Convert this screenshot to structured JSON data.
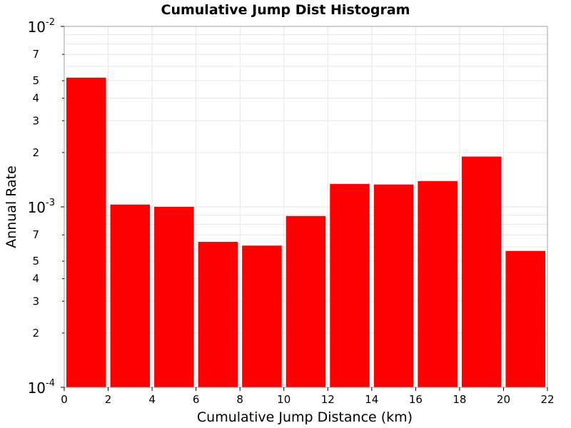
{
  "chart_data": {
    "type": "bar",
    "title": "Cumulative Jump Dist Histogram",
    "xlabel": "Cumulative Jump Distance (km)",
    "ylabel": "Annual Rate",
    "yscale": "log",
    "xlim": [
      0,
      22
    ],
    "ylim": [
      0.0001,
      0.01
    ],
    "x_ticks": [
      "0",
      "2",
      "4",
      "6",
      "8",
      "10",
      "12",
      "14",
      "16",
      "18",
      "20",
      "22"
    ],
    "y_decade_ticks": [
      {
        "base": "10",
        "exponent": "-4"
      },
      {
        "base": "10",
        "exponent": "-3"
      },
      {
        "base": "10",
        "exponent": "-2"
      }
    ],
    "y_minor_labels": [
      "2",
      "3",
      "4",
      "5",
      "7"
    ],
    "grid": true,
    "bar_color": "#ff0000",
    "bins": [
      {
        "x0": 0,
        "x1": 2,
        "value": 0.0052
      },
      {
        "x0": 2,
        "x1": 4,
        "value": 0.00103
      },
      {
        "x0": 4,
        "x1": 6,
        "value": 0.001
      },
      {
        "x0": 6,
        "x1": 8,
        "value": 0.00064
      },
      {
        "x0": 8,
        "x1": 10,
        "value": 0.00061
      },
      {
        "x0": 10,
        "x1": 12,
        "value": 0.00089
      },
      {
        "x0": 12,
        "x1": 14,
        "value": 0.00134
      },
      {
        "x0": 14,
        "x1": 16,
        "value": 0.00133
      },
      {
        "x0": 16,
        "x1": 18,
        "value": 0.00139
      },
      {
        "x0": 18,
        "x1": 20,
        "value": 0.0019
      },
      {
        "x0": 20,
        "x1": 22,
        "value": 0.00057
      }
    ]
  }
}
